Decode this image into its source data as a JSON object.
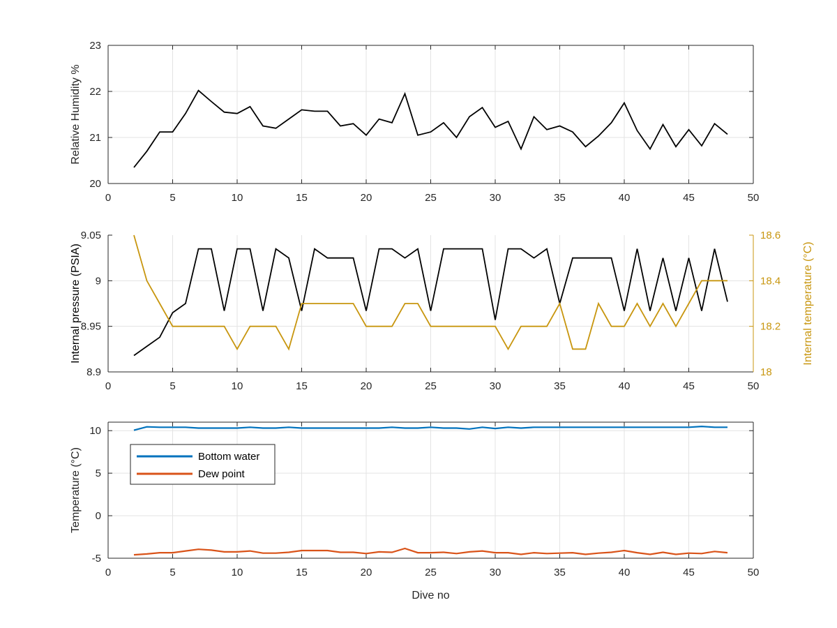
{
  "chart_data": [
    {
      "type": "line",
      "xlabel": "",
      "ylabel": "Relative Humidity %",
      "xlim": [
        0,
        50
      ],
      "ylim": [
        20,
        23
      ],
      "xticks": [
        0,
        5,
        10,
        15,
        20,
        25,
        30,
        35,
        40,
        45,
        50
      ],
      "yticks": [
        20,
        21,
        22,
        23
      ],
      "grid": true,
      "legend": null,
      "series": [
        {
          "name": "",
          "axis": "left",
          "color": "#000000",
          "x": [
            2,
            3,
            4,
            5,
            6,
            7,
            8,
            9,
            10,
            11,
            12,
            13,
            14,
            15,
            16,
            17,
            18,
            19,
            20,
            21,
            22,
            23,
            24,
            25,
            26,
            27,
            28,
            29,
            30,
            31,
            32,
            33,
            34,
            35,
            36,
            37,
            38,
            39,
            40,
            41,
            42,
            43,
            44,
            45,
            46,
            47,
            48
          ],
          "values": [
            20.35,
            20.7,
            21.12,
            21.12,
            21.52,
            22.02,
            21.78,
            21.55,
            21.52,
            21.67,
            21.25,
            21.2,
            21.4,
            21.6,
            21.57,
            21.57,
            21.25,
            21.3,
            21.05,
            21.4,
            21.32,
            21.95,
            21.05,
            21.12,
            21.32,
            21.0,
            21.45,
            21.65,
            21.22,
            21.35,
            20.75,
            21.45,
            21.17,
            21.25,
            21.12,
            20.8,
            21.03,
            21.32,
            21.75,
            21.15,
            20.75,
            21.28,
            20.8,
            21.17,
            20.82,
            21.3,
            21.07
          ]
        }
      ]
    },
    {
      "type": "line",
      "xlabel": "",
      "ylabel": "Internal pressure (PSIA)",
      "ylabel_right": "Internal temperature (°C)",
      "xlim": [
        0,
        50
      ],
      "ylim": [
        8.9,
        9.05
      ],
      "ylim_right": [
        18,
        18.6
      ],
      "xticks": [
        0,
        5,
        10,
        15,
        20,
        25,
        30,
        35,
        40,
        45,
        50
      ],
      "yticks": [
        "8.9",
        "8.95",
        "9",
        "9.05"
      ],
      "yticks_right": [
        "18",
        "18.2",
        "18.4",
        "18.6"
      ],
      "grid": true,
      "legend": null,
      "series": [
        {
          "name": "",
          "axis": "left",
          "color": "#000000",
          "x": [
            2,
            3,
            4,
            5,
            6,
            7,
            8,
            9,
            10,
            11,
            12,
            13,
            14,
            15,
            16,
            17,
            18,
            19,
            20,
            21,
            22,
            23,
            24,
            25,
            26,
            27,
            28,
            29,
            30,
            31,
            32,
            33,
            34,
            35,
            36,
            37,
            38,
            39,
            40,
            41,
            42,
            43,
            44,
            45,
            46,
            47,
            48
          ],
          "values": [
            8.918,
            8.928,
            8.938,
            8.965,
            8.975,
            9.035,
            9.035,
            8.967,
            9.035,
            9.035,
            8.967,
            9.035,
            9.025,
            8.967,
            9.035,
            9.025,
            9.025,
            9.025,
            8.967,
            9.035,
            9.035,
            9.025,
            9.035,
            8.967,
            9.035,
            9.035,
            9.035,
            9.035,
            8.957,
            9.035,
            9.035,
            9.025,
            9.035,
            8.975,
            9.025,
            9.025,
            9.025,
            9.025,
            8.967,
            9.035,
            8.967,
            9.025,
            8.967,
            9.025,
            8.967,
            9.035,
            8.977
          ]
        },
        {
          "name": "",
          "axis": "right",
          "color": "#c8960f",
          "x": [
            2,
            3,
            4,
            5,
            6,
            7,
            8,
            9,
            10,
            11,
            12,
            13,
            14,
            15,
            16,
            17,
            18,
            19,
            20,
            21,
            22,
            23,
            24,
            25,
            26,
            27,
            28,
            29,
            30,
            31,
            32,
            33,
            34,
            35,
            36,
            37,
            38,
            39,
            40,
            41,
            42,
            43,
            44,
            45,
            46,
            47,
            48
          ],
          "values": [
            18.6,
            18.4,
            18.3,
            18.2,
            18.2,
            18.2,
            18.2,
            18.2,
            18.1,
            18.2,
            18.2,
            18.2,
            18.1,
            18.3,
            18.3,
            18.3,
            18.3,
            18.3,
            18.2,
            18.2,
            18.2,
            18.3,
            18.3,
            18.2,
            18.2,
            18.2,
            18.2,
            18.2,
            18.2,
            18.1,
            18.2,
            18.2,
            18.2,
            18.3,
            18.1,
            18.1,
            18.3,
            18.2,
            18.2,
            18.3,
            18.2,
            18.3,
            18.2,
            18.3,
            18.4,
            18.4,
            18.4
          ]
        }
      ]
    },
    {
      "type": "line",
      "xlabel": "Dive no",
      "ylabel": "Temperature (°C)",
      "xlim": [
        0,
        50
      ],
      "ylim": [
        -5,
        11
      ],
      "xticks": [
        0,
        5,
        10,
        15,
        20,
        25,
        30,
        35,
        40,
        45,
        50
      ],
      "yticks": [
        -5,
        0,
        5,
        10
      ],
      "grid": true,
      "legend": "top-left",
      "series": [
        {
          "name": "Bottom water",
          "axis": "left",
          "color": "#0072bd",
          "x": [
            2,
            3,
            4,
            5,
            6,
            7,
            8,
            9,
            10,
            11,
            12,
            13,
            14,
            15,
            16,
            17,
            18,
            19,
            20,
            21,
            22,
            23,
            24,
            25,
            26,
            27,
            28,
            29,
            30,
            31,
            32,
            33,
            34,
            35,
            36,
            37,
            38,
            39,
            40,
            41,
            42,
            43,
            44,
            45,
            46,
            47,
            48
          ],
          "values": [
            10.05,
            10.45,
            10.4,
            10.4,
            10.4,
            10.3,
            10.3,
            10.3,
            10.3,
            10.4,
            10.3,
            10.3,
            10.4,
            10.3,
            10.3,
            10.3,
            10.3,
            10.3,
            10.3,
            10.3,
            10.4,
            10.3,
            10.3,
            10.4,
            10.3,
            10.3,
            10.2,
            10.4,
            10.25,
            10.4,
            10.3,
            10.4,
            10.4,
            10.4,
            10.4,
            10.4,
            10.4,
            10.4,
            10.4,
            10.4,
            10.4,
            10.4,
            10.4,
            10.4,
            10.5,
            10.4,
            10.4
          ]
        },
        {
          "name": "Dew point",
          "axis": "left",
          "color": "#d95319",
          "x": [
            2,
            3,
            4,
            5,
            6,
            7,
            8,
            9,
            10,
            11,
            12,
            13,
            14,
            15,
            16,
            17,
            18,
            19,
            20,
            21,
            22,
            23,
            24,
            25,
            26,
            27,
            28,
            29,
            30,
            31,
            32,
            33,
            34,
            35,
            36,
            37,
            38,
            39,
            40,
            41,
            42,
            43,
            44,
            45,
            46,
            47,
            48
          ],
          "values": [
            -4.6,
            -4.5,
            -4.35,
            -4.35,
            -4.15,
            -3.95,
            -4.05,
            -4.25,
            -4.25,
            -4.15,
            -4.4,
            -4.4,
            -4.3,
            -4.1,
            -4.1,
            -4.1,
            -4.3,
            -4.3,
            -4.45,
            -4.25,
            -4.3,
            -3.85,
            -4.35,
            -4.35,
            -4.3,
            -4.45,
            -4.25,
            -4.15,
            -4.35,
            -4.35,
            -4.55,
            -4.35,
            -4.45,
            -4.4,
            -4.35,
            -4.55,
            -4.4,
            -4.3,
            -4.1,
            -4.35,
            -4.55,
            -4.3,
            -4.55,
            -4.4,
            -4.45,
            -4.2,
            -4.35
          ]
        }
      ]
    }
  ]
}
